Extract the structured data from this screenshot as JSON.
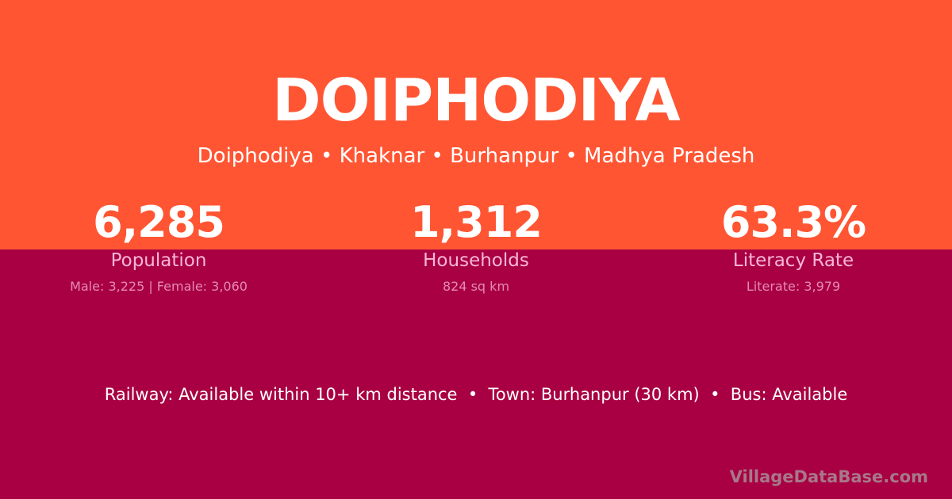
{
  "colors": {
    "top_bg": "#FF5533",
    "bottom_bg": "#A80042"
  },
  "title": "DOIPHODIYA",
  "breadcrumb": "Doiphodiya • Khaknar • Burhanpur • Madhya Pradesh",
  "stats": [
    {
      "value": "6,285",
      "label": "Population",
      "detail": "Male: 3,225 | Female: 3,060"
    },
    {
      "value": "1,312",
      "label": "Households",
      "detail": "824 sq km"
    },
    {
      "value": "63.3%",
      "label": "Literacy Rate",
      "detail": "Literate: 3,979"
    }
  ],
  "info": "Railway: Available within 10+ km distance  •  Town: Burhanpur (30 km)  •  Bus: Available",
  "watermark": "VillageDataBase.com"
}
